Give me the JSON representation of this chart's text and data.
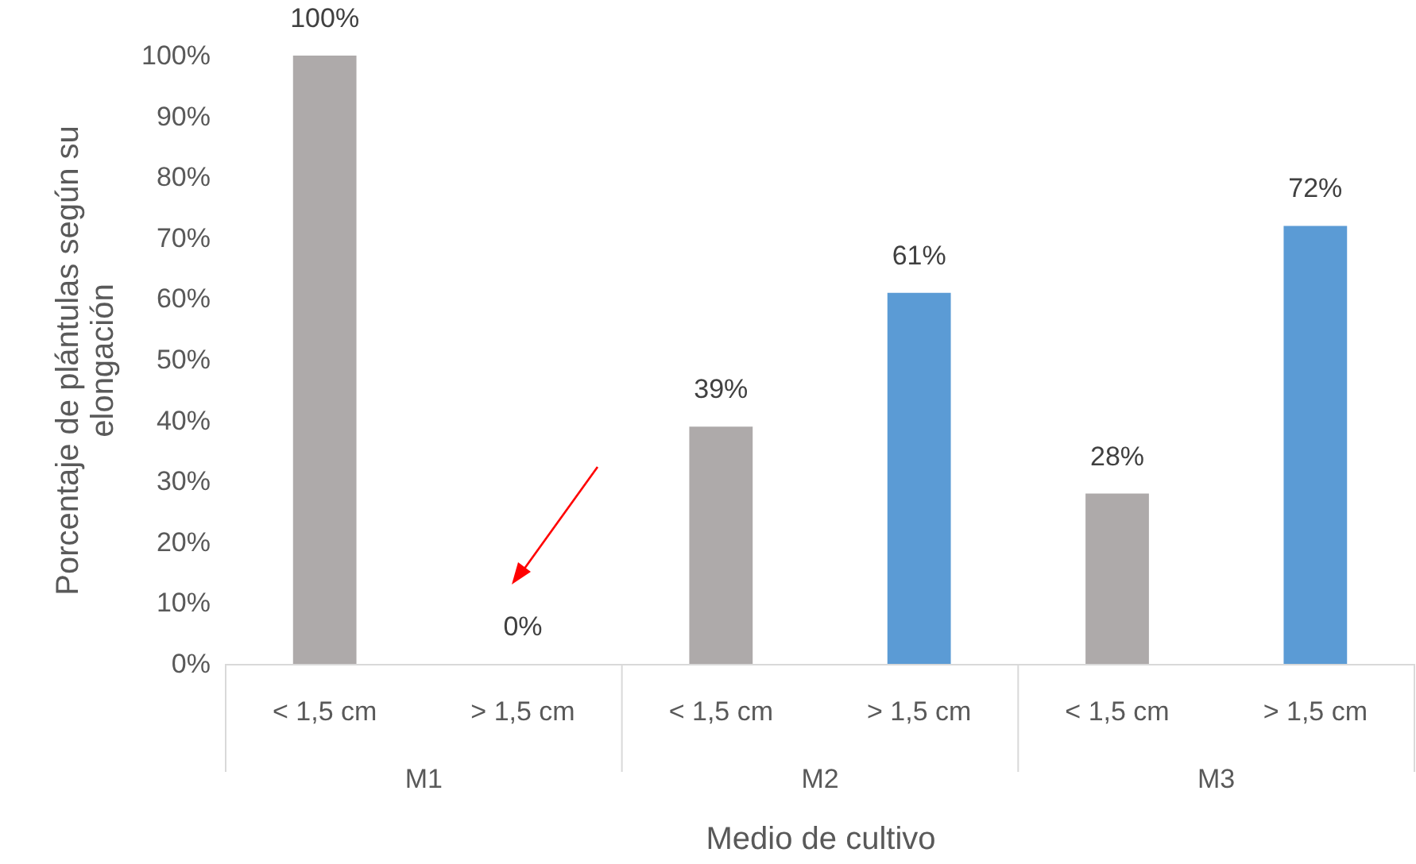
{
  "chart_data": {
    "type": "bar",
    "xlabel": "Medio de cultivo",
    "ylabel": "Porcentaje de plántulas según su elongación",
    "categories": [
      "< 1,5 cm",
      "> 1,5 cm",
      "< 1,5 cm",
      "> 1,5 cm",
      "< 1,5 cm",
      "> 1,5 cm"
    ],
    "values": [
      100,
      0,
      39,
      61,
      28,
      72
    ],
    "colors": [
      "#aeaaaa",
      "#5b9bd5",
      "#aeaaaa",
      "#5b9bd5",
      "#aeaaaa",
      "#5b9bd5"
    ],
    "value_labels": [
      "100%",
      "0%",
      "39%",
      "61%",
      "28%",
      "72%"
    ],
    "annotations": [
      "M1",
      "M2",
      "M3"
    ],
    "ylim": [
      0,
      100
    ],
    "yticks": [
      {
        "value": 0,
        "label": "0%"
      },
      {
        "value": 10,
        "label": "10%"
      },
      {
        "value": 20,
        "label": "20%"
      },
      {
        "value": 30,
        "label": "30%"
      },
      {
        "value": 40,
        "label": "40%"
      },
      {
        "value": 50,
        "label": "50%"
      },
      {
        "value": 60,
        "label": "60%"
      },
      {
        "value": 70,
        "label": "70%"
      },
      {
        "value": 80,
        "label": "80%"
      },
      {
        "value": 90,
        "label": "90%"
      },
      {
        "value": 100,
        "label": "100%"
      }
    ],
    "grid": false
  }
}
